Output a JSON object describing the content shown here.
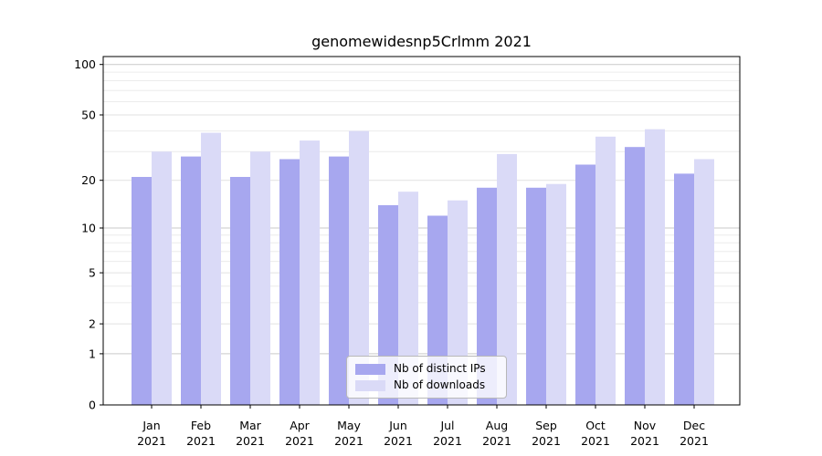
{
  "chart_data": {
    "type": "bar",
    "title": "genomewidesnp5Crlmm 2021",
    "categories": [
      "Jan 2021",
      "Feb 2021",
      "Mar 2021",
      "Apr 2021",
      "May 2021",
      "Jun 2021",
      "Jul 2021",
      "Aug 2021",
      "Sep 2021",
      "Oct 2021",
      "Nov 2021",
      "Dec 2021"
    ],
    "series": [
      {
        "name": "Nb of distinct IPs",
        "color": "#a7a7ef",
        "values": [
          21,
          28,
          21,
          27,
          28,
          14,
          12,
          18,
          18,
          25,
          32,
          22
        ]
      },
      {
        "name": "Nb of downloads",
        "color": "#dadaf7",
        "values": [
          30,
          39,
          30,
          35,
          40,
          17,
          15,
          29,
          19,
          37,
          41,
          27
        ]
      }
    ],
    "yscale": "log1p",
    "yticks": [
      0,
      1,
      2,
      5,
      10,
      20,
      50,
      100
    ],
    "ytick_labels": [
      "0",
      "1",
      "2",
      "5",
      "10",
      "20",
      "50",
      "100"
    ],
    "minor_gridlines": [
      3,
      4,
      6,
      7,
      8,
      9,
      30,
      40,
      60,
      70,
      80,
      90
    ],
    "major_gridlines": [
      1,
      10,
      100
    ],
    "ylim": [
      0,
      111
    ],
    "grid": true,
    "legend_position": "lower center",
    "colors": {
      "axis": "#000000",
      "text": "#000000",
      "grid_major": "#c9c9c9",
      "grid_minor": "#ececec",
      "grid_labeled": "#e2e2e2"
    }
  },
  "legend": {
    "items": [
      {
        "label": "Nb of distinct IPs"
      },
      {
        "label": "Nb of downloads"
      }
    ]
  }
}
